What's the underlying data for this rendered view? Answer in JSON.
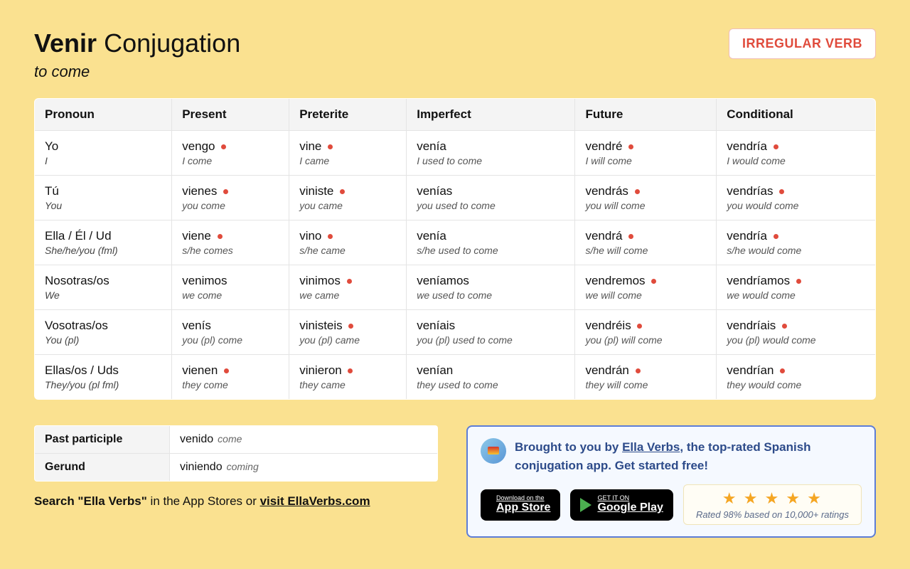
{
  "header": {
    "verb": "Venir",
    "title_rest": " Conjugation",
    "subtitle": "to come",
    "badge": "IRREGULAR VERB"
  },
  "columns": [
    "Pronoun",
    "Present",
    "Preterite",
    "Imperfect",
    "Future",
    "Conditional"
  ],
  "pronouns": [
    {
      "es": "Yo",
      "en": "I"
    },
    {
      "es": "Tú",
      "en": "You"
    },
    {
      "es": "Ella / Él / Ud",
      "en": "She/he/you (fml)"
    },
    {
      "es": "Nosotras/os",
      "en": "We"
    },
    {
      "es": "Vosotras/os",
      "en": "You (pl)"
    },
    {
      "es": "Ellas/os / Uds",
      "en": "They/you (pl fml)"
    }
  ],
  "forms": [
    [
      {
        "es": "vengo",
        "en": "I come",
        "irr": true
      },
      {
        "es": "vine",
        "en": "I came",
        "irr": true
      },
      {
        "es": "venía",
        "en": "I used to come",
        "irr": false
      },
      {
        "es": "vendré",
        "en": "I will come",
        "irr": true
      },
      {
        "es": "vendría",
        "en": "I would come",
        "irr": true
      }
    ],
    [
      {
        "es": "vienes",
        "en": "you come",
        "irr": true
      },
      {
        "es": "viniste",
        "en": "you came",
        "irr": true
      },
      {
        "es": "venías",
        "en": "you used to come",
        "irr": false
      },
      {
        "es": "vendrás",
        "en": "you will come",
        "irr": true
      },
      {
        "es": "vendrías",
        "en": "you would come",
        "irr": true
      }
    ],
    [
      {
        "es": "viene",
        "en": "s/he comes",
        "irr": true
      },
      {
        "es": "vino",
        "en": "s/he came",
        "irr": true
      },
      {
        "es": "venía",
        "en": "s/he used to come",
        "irr": false
      },
      {
        "es": "vendrá",
        "en": "s/he will come",
        "irr": true
      },
      {
        "es": "vendría",
        "en": "s/he would come",
        "irr": true
      }
    ],
    [
      {
        "es": "venimos",
        "en": "we come",
        "irr": false
      },
      {
        "es": "vinimos",
        "en": "we came",
        "irr": true
      },
      {
        "es": "veníamos",
        "en": "we used to come",
        "irr": false
      },
      {
        "es": "vendremos",
        "en": "we will come",
        "irr": true
      },
      {
        "es": "vendríamos",
        "en": "we would come",
        "irr": true
      }
    ],
    [
      {
        "es": "venís",
        "en": "you (pl) come",
        "irr": false
      },
      {
        "es": "vinisteis",
        "en": "you (pl) came",
        "irr": true
      },
      {
        "es": "veníais",
        "en": "you (pl) used to come",
        "irr": false
      },
      {
        "es": "vendréis",
        "en": "you (pl) will come",
        "irr": true
      },
      {
        "es": "vendríais",
        "en": "you (pl) would come",
        "irr": true
      }
    ],
    [
      {
        "es": "vienen",
        "en": "they come",
        "irr": true
      },
      {
        "es": "vinieron",
        "en": "they came",
        "irr": true
      },
      {
        "es": "venían",
        "en": "they used to come",
        "irr": false
      },
      {
        "es": "vendrán",
        "en": "they will come",
        "irr": true
      },
      {
        "es": "vendrían",
        "en": "they would come",
        "irr": true
      }
    ]
  ],
  "participles": [
    {
      "label": "Past participle",
      "es": "venido",
      "en": "come"
    },
    {
      "label": "Gerund",
      "es": "viniendo",
      "en": "coming"
    }
  ],
  "search": {
    "prefix": "Search \"Ella Verbs\" ",
    "mid": "in the App Stores or ",
    "link": "visit EllaVerbs.com"
  },
  "promo": {
    "prefix": "Brought to you by ",
    "link": "Ella Verbs",
    "suffix": ", the top-rated Spanish conjugation app. Get started free!",
    "appstore_small": "Download on the",
    "appstore_big": "App Store",
    "play_small": "GET IT ON",
    "play_big": "Google Play",
    "stars": "★ ★ ★ ★ ★",
    "rating": "Rated 98% based on 10,000+ ratings"
  },
  "colors": {
    "background": "#fae190",
    "irregular_dot": "#e04b3c",
    "badge_text": "#e04b3c",
    "promo_border": "#5d7dd6",
    "promo_bg": "#f5f9ff",
    "star": "#f5a623"
  }
}
